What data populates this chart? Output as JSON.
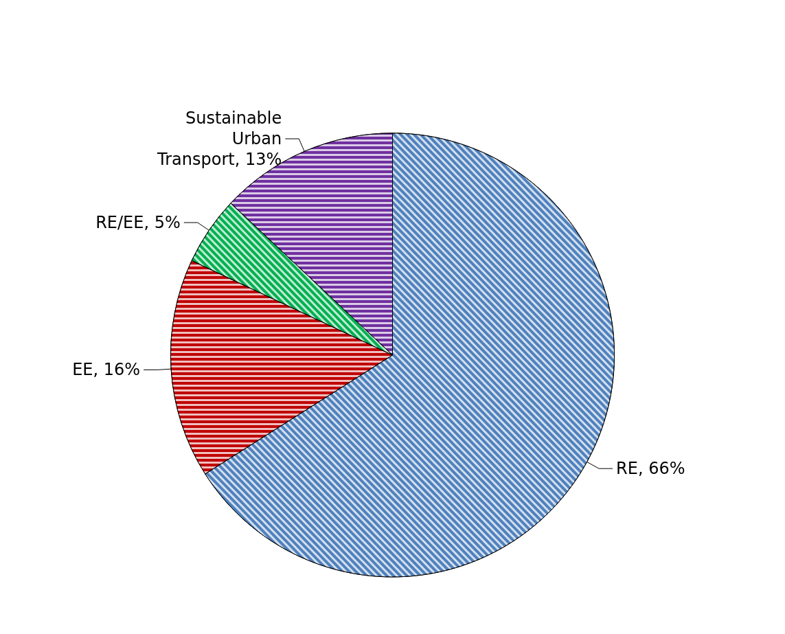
{
  "chart_data": {
    "type": "pie",
    "categories": [
      "RE",
      "EE",
      "RE/EE",
      "Sustainable Urban Transport"
    ],
    "values": [
      66,
      16,
      5,
      13
    ],
    "value_labels": [
      "66%",
      "16%",
      "5%",
      "13%"
    ],
    "colors": [
      "#4f81bd",
      "#c00000",
      "#00b050",
      "#7030a0"
    ],
    "legend": false
  }
}
